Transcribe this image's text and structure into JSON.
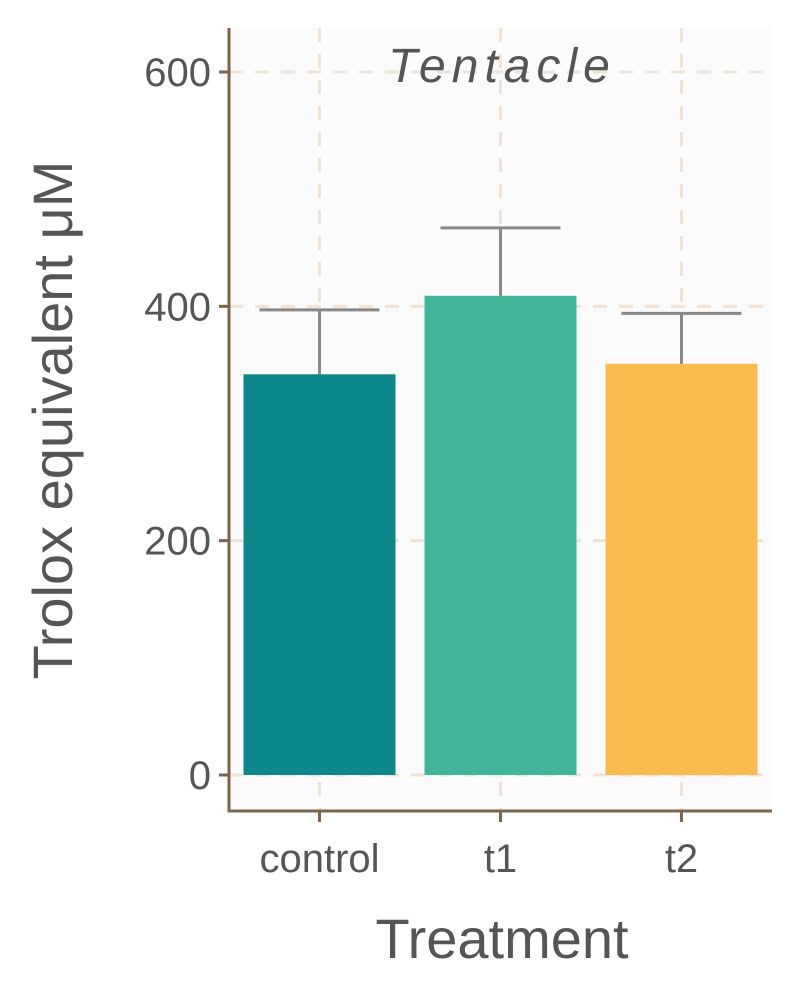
{
  "chart_data": {
    "type": "bar",
    "title": "Tentacle",
    "xlabel": "Treatment",
    "ylabel": "Trolox equivalent μM",
    "categories": [
      "control",
      "t1",
      "t2"
    ],
    "values": [
      342,
      409,
      351
    ],
    "error_upper": [
      397,
      467,
      394
    ],
    "ylim": [
      -30,
      640
    ],
    "yticks": [
      0,
      200,
      400,
      600
    ],
    "grid": true,
    "colors": {
      "bars": [
        "#0c888c",
        "#3fb59a",
        "#fbbb4c"
      ],
      "panel": "#fbfbfb",
      "grid": "#efe3d6",
      "axis": "#7c6448",
      "error_bar": "#888888",
      "text": "#555555"
    }
  }
}
